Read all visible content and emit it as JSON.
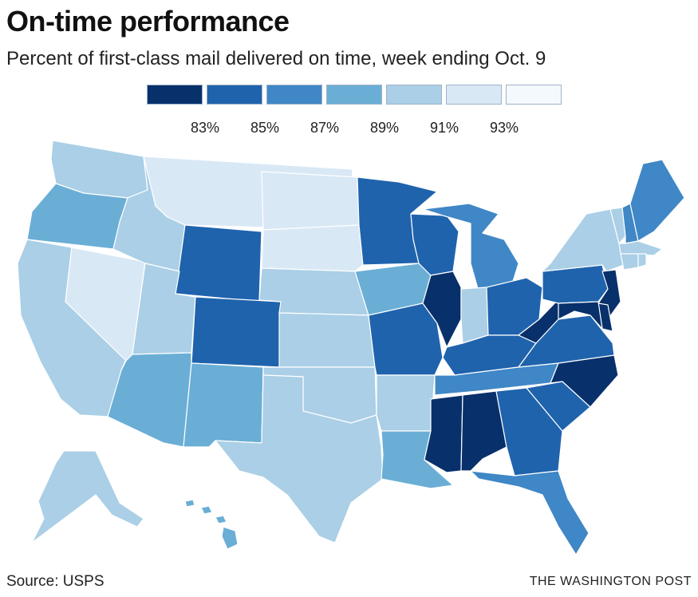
{
  "title": "On-time performance",
  "subtitle": "Percent of first-class mail delivered on time, week ending Oct. 9",
  "legend": {
    "colors": [
      "#08306b",
      "#1f63ad",
      "#3f87c6",
      "#6aaed6",
      "#aacfe6",
      "#d9e8f5",
      "#f4f9fe"
    ],
    "labels": [
      "83%",
      "85%",
      "87%",
      "89%",
      "91%",
      "93%"
    ]
  },
  "footer": {
    "source": "Source: USPS",
    "credit": "THE WASHINGTON POST"
  },
  "map_data": {
    "bins": {
      "0": "below 83%",
      "1": "83-85%",
      "2": "85-87%",
      "3": "87-89%",
      "4": "89-91%",
      "5": "91-93%",
      "6": "93% and above"
    },
    "states": {
      "WA": 4,
      "OR": 3,
      "CA": 4,
      "NV": 5,
      "ID": 4,
      "MT": 5,
      "WY": 1,
      "UT": 4,
      "AZ": 3,
      "CO": 1,
      "NM": 3,
      "ND": 5,
      "SD": 5,
      "NE": 4,
      "KS": 4,
      "OK": 4,
      "TX": 4,
      "MN": 1,
      "IA": 3,
      "MO": 1,
      "AR": 4,
      "LA": 3,
      "WI": 1,
      "IL": 0,
      "MI": 2,
      "IN": 4,
      "OH": 1,
      "KY": 1,
      "TN": 2,
      "MS": 0,
      "AL": 0,
      "GA": 1,
      "FL": 2,
      "SC": 1,
      "NC": 0,
      "VA": 1,
      "WV": 0,
      "PA": 1,
      "NY": 4,
      "ME": 2,
      "VT": 4,
      "NH": 2,
      "MA": 4,
      "CT": 4,
      "RI": 4,
      "NJ": 0,
      "DE": 0,
      "MD": 0,
      "AK": 4,
      "HI": 3,
      "DC": 0
    }
  }
}
